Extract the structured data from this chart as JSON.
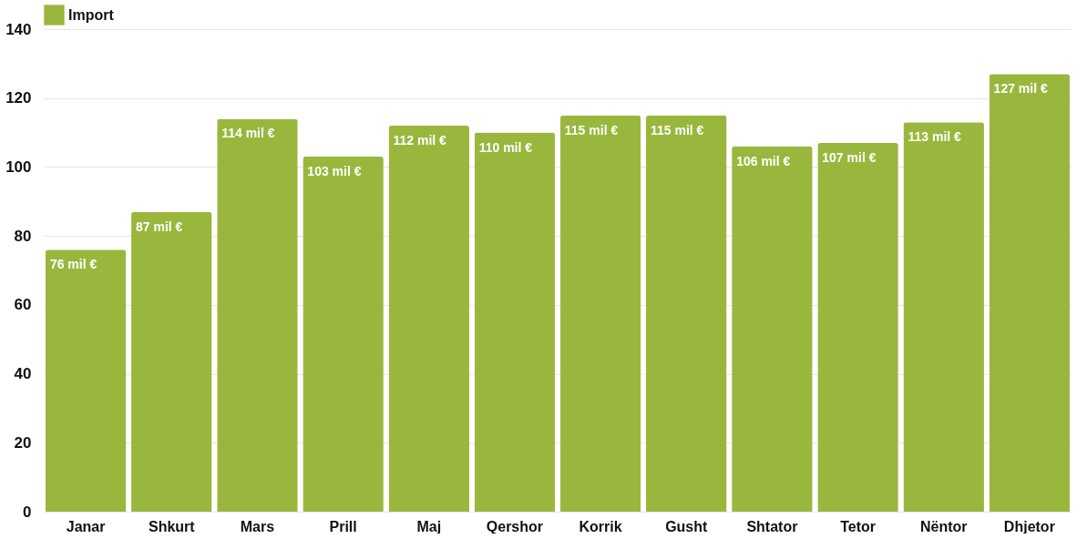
{
  "chart_data": {
    "type": "bar",
    "categories": [
      "Janar",
      "Shkurt",
      "Mars",
      "Prill",
      "Maj",
      "Qershor",
      "Korrik",
      "Gusht",
      "Shtator",
      "Tetor",
      "Nëntor",
      "Dhjetor"
    ],
    "series": [
      {
        "name": "Import",
        "color": "#9ab73d",
        "values": [
          76,
          87,
          114,
          103,
          112,
          110,
          115,
          115,
          106,
          107,
          113,
          127
        ],
        "value_labels": [
          "76 mil €",
          "87 mil €",
          "114 mil €",
          "103 mil €",
          "112 mil €",
          "110 mil €",
          "115 mil €",
          "115 mil €",
          "106 mil €",
          "107 mil €",
          "113 mil €",
          "127 mil €"
        ]
      }
    ],
    "ylim": [
      0,
      140
    ],
    "yticks": [
      0,
      20,
      40,
      60,
      80,
      100,
      120,
      140
    ],
    "grid": "y",
    "legend": "top"
  }
}
